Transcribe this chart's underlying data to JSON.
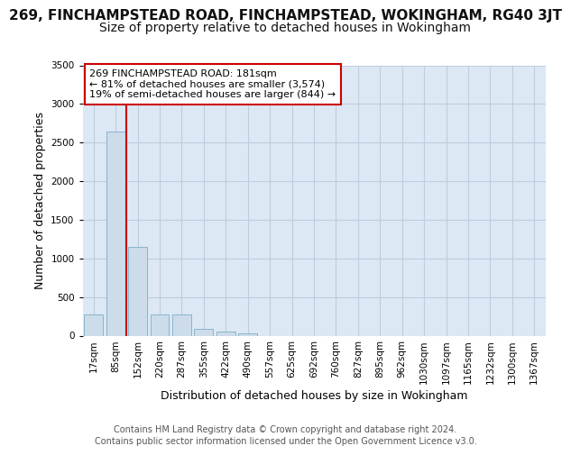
{
  "title": "269, FINCHAMPSTEAD ROAD, FINCHAMPSTEAD, WOKINGHAM, RG40 3JT",
  "subtitle": "Size of property relative to detached houses in Wokingham",
  "xlabel": "Distribution of detached houses by size in Wokingham",
  "ylabel": "Number of detached properties",
  "bin_labels": [
    "17sqm",
    "85sqm",
    "152sqm",
    "220sqm",
    "287sqm",
    "355sqm",
    "422sqm",
    "490sqm",
    "557sqm",
    "625sqm",
    "692sqm",
    "760sqm",
    "827sqm",
    "895sqm",
    "962sqm",
    "1030sqm",
    "1097sqm",
    "1165sqm",
    "1232sqm",
    "1300sqm",
    "1367sqm"
  ],
  "bar_heights": [
    270,
    2640,
    1150,
    280,
    280,
    85,
    55,
    35,
    0,
    0,
    0,
    0,
    0,
    0,
    0,
    0,
    0,
    0,
    0,
    0,
    0
  ],
  "bar_color": "#ccdcea",
  "bar_edgecolor": "#8ab4cc",
  "grid_color": "#c0cce0",
  "background_color": "#dce8f4",
  "red_line_color": "#cc0000",
  "red_line_x": 1.5,
  "annotation_text": "269 FINCHAMPSTEAD ROAD: 181sqm\n← 81% of detached houses are smaller (3,574)\n19% of semi-detached houses are larger (844) →",
  "annotation_box_facecolor": "#ffffff",
  "annotation_box_edgecolor": "#cc0000",
  "ylim": [
    0,
    3500
  ],
  "yticks": [
    0,
    500,
    1000,
    1500,
    2000,
    2500,
    3000,
    3500
  ],
  "footer_text": "Contains HM Land Registry data © Crown copyright and database right 2024.\nContains public sector information licensed under the Open Government Licence v3.0.",
  "title_fontsize": 11,
  "subtitle_fontsize": 10,
  "ylabel_fontsize": 9,
  "xlabel_fontsize": 9,
  "tick_fontsize": 7.5,
  "annotation_fontsize": 8,
  "footer_fontsize": 7
}
